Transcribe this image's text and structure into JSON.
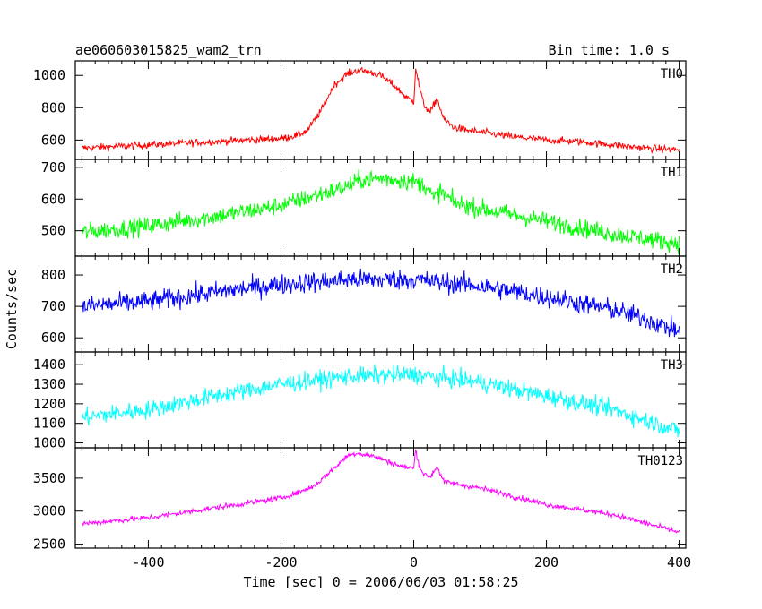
{
  "header": {
    "title": "ae060603015825_wam2_trn",
    "bin_time": "Bin time: 1.0 s"
  },
  "chart_data": {
    "type": "line",
    "xlabel": "Time [sec] 0 = 2006/06/03 01:58:25",
    "ylabel": "Counts/sec",
    "xlim": [
      -510,
      410
    ],
    "xticks": [
      -400,
      -200,
      0,
      200,
      400
    ],
    "shared_x": true,
    "panels": [
      {
        "name": "TH0",
        "color": "#ff0000",
        "ylim": [
          480,
          1090
        ],
        "yticks": [
          600,
          800,
          1000
        ],
        "x": [
          -500,
          -450,
          -400,
          -350,
          -300,
          -250,
          -200,
          -175,
          -160,
          -140,
          -120,
          -100,
          -85,
          -70,
          -50,
          -30,
          -20,
          -10,
          0,
          3,
          8,
          15,
          25,
          35,
          45,
          60,
          80,
          100,
          150,
          200,
          250,
          300,
          350,
          400
        ],
        "y": [
          550,
          560,
          570,
          580,
          590,
          600,
          610,
          630,
          660,
          780,
          940,
          1010,
          1030,
          1025,
          1000,
          940,
          900,
          860,
          840,
          1050,
          940,
          820,
          770,
          860,
          730,
          680,
          660,
          650,
          620,
          600,
          590,
          570,
          550,
          540
        ],
        "noise": 22
      },
      {
        "name": "TH1",
        "color": "#00ff00",
        "ylim": [
          420,
          725
        ],
        "yticks": [
          500,
          600,
          700
        ],
        "x": [
          -500,
          -400,
          -300,
          -200,
          -150,
          -100,
          -80,
          -50,
          0,
          20,
          30,
          40,
          60,
          100,
          200,
          300,
          400
        ],
        "y": [
          495,
          515,
          545,
          580,
          610,
          640,
          660,
          665,
          655,
          640,
          600,
          625,
          590,
          570,
          530,
          490,
          460
        ],
        "noise": 28
      },
      {
        "name": "TH2",
        "color": "#0000ff",
        "ylim": [
          555,
          860
        ],
        "yticks": [
          600,
          700,
          800
        ],
        "x": [
          -500,
          -400,
          -300,
          -200,
          -100,
          0,
          100,
          200,
          300,
          350,
          400
        ],
        "y": [
          700,
          715,
          745,
          770,
          785,
          785,
          765,
          730,
          690,
          660,
          620
        ],
        "noise": 32
      },
      {
        "name": "TH3",
        "color": "#00ffff",
        "ylim": [
          975,
          1465
        ],
        "yticks": [
          1000,
          1100,
          1200,
          1300,
          1400
        ],
        "x": [
          -500,
          -400,
          -300,
          -200,
          -100,
          0,
          100,
          200,
          300,
          400
        ],
        "y": [
          1130,
          1170,
          1240,
          1300,
          1340,
          1350,
          1310,
          1240,
          1170,
          1060
        ],
        "noise": 45
      },
      {
        "name": "TH0123",
        "color": "#ff00ff",
        "ylim": [
          2440,
          3960
        ],
        "yticks": [
          2500,
          3000,
          3500
        ],
        "x": [
          -500,
          -400,
          -300,
          -200,
          -175,
          -150,
          -120,
          -100,
          -85,
          -60,
          -40,
          -20,
          0,
          3,
          8,
          15,
          25,
          35,
          45,
          60,
          100,
          200,
          300,
          400
        ],
        "y": [
          2810,
          2900,
          3050,
          3200,
          3280,
          3380,
          3650,
          3840,
          3880,
          3830,
          3760,
          3680,
          3650,
          3930,
          3700,
          3560,
          3520,
          3680,
          3450,
          3420,
          3350,
          3100,
          2950,
          2680
        ],
        "noise": 40
      }
    ]
  }
}
